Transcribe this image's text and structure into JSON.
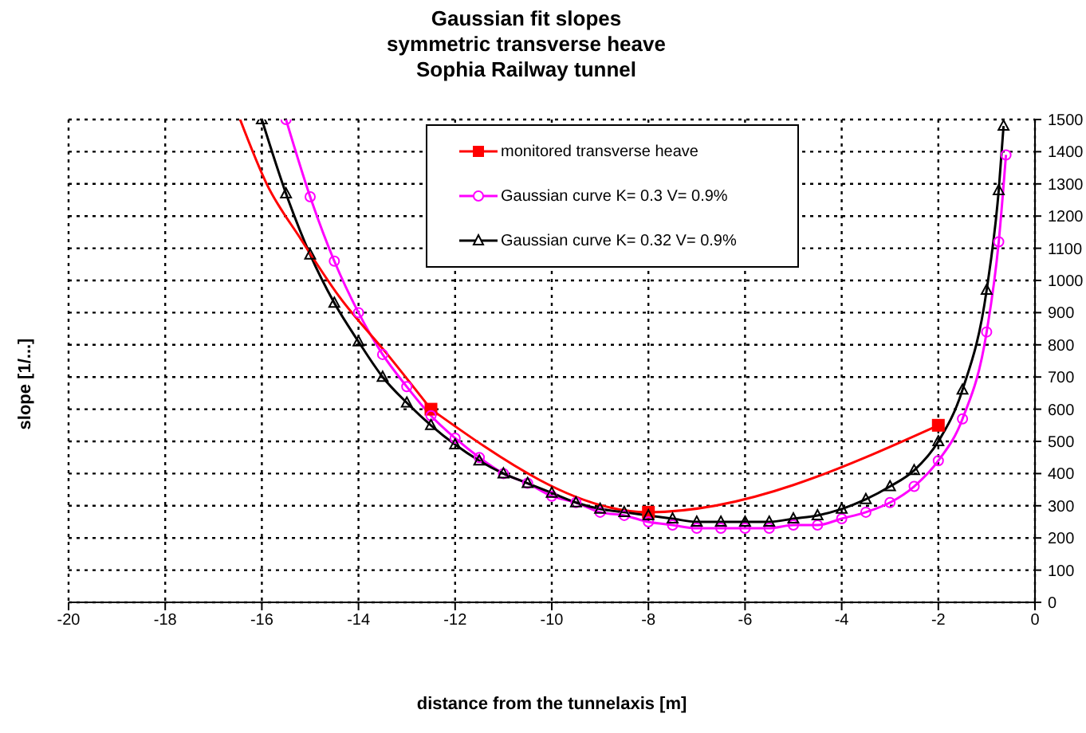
{
  "chart_data": {
    "type": "line",
    "title": "Gaussian fit slopes\nsymmetric transverse heave\nSophia Railway tunnel",
    "xlabel": "distance from the tunnelaxis [m]",
    "ylabel": "slope [1/...]",
    "xlim": [
      -20,
      0
    ],
    "xticks": [
      -20,
      -18,
      -16,
      -14,
      -12,
      -10,
      -8,
      -6,
      -4,
      -2,
      0
    ],
    "ylim": [
      0,
      1500
    ],
    "yticks": [
      0,
      100,
      200,
      300,
      400,
      500,
      600,
      700,
      800,
      900,
      1000,
      1100,
      1200,
      1300,
      1400,
      1500
    ],
    "grid": true,
    "legend": "top",
    "line_style": "solid",
    "series": [
      {
        "name": "monitored transverse heave",
        "color": "#ff0000",
        "marker": "square",
        "x": [
          -12.5,
          -8,
          -2
        ],
        "values": [
          600,
          280,
          550
        ]
      },
      {
        "name": "Gaussian curve K= 0.3 V= 0.9%",
        "color": "#ff00ff",
        "marker": "circle",
        "x": [
          -15.5,
          -15,
          -14.5,
          -14,
          -13.5,
          -13,
          -12.5,
          -12,
          -11.5,
          -11,
          -10.5,
          -10,
          -9.5,
          -9,
          -8.5,
          -8,
          -7.5,
          -7,
          -6.5,
          -6,
          -5.5,
          -5,
          -4.5,
          -4,
          -3.5,
          -3,
          -2.5,
          -2,
          -1.5,
          -1,
          -0.75,
          -0.6
        ],
        "values": [
          1500,
          1260,
          1060,
          900,
          770,
          670,
          580,
          510,
          450,
          400,
          370,
          330,
          310,
          280,
          270,
          250,
          240,
          230,
          230,
          230,
          230,
          240,
          240,
          260,
          280,
          310,
          360,
          440,
          570,
          840,
          1120,
          1390
        ]
      },
      {
        "name": "Gaussian curve K= 0.32 V= 0.9%",
        "color": "#000000",
        "marker": "triangle",
        "x": [
          -16,
          -15.5,
          -15,
          -14.5,
          -14,
          -13.5,
          -13,
          -12.5,
          -12,
          -11.5,
          -11,
          -10.5,
          -10,
          -9.5,
          -9,
          -8.5,
          -8,
          -7.5,
          -7,
          -6.5,
          -6,
          -5.5,
          -5,
          -4.5,
          -4,
          -3.5,
          -3,
          -2.5,
          -2,
          -1.5,
          -1,
          -0.75,
          -0.65
        ],
        "values": [
          1500,
          1270,
          1080,
          930,
          810,
          700,
          620,
          550,
          490,
          440,
          400,
          370,
          340,
          310,
          290,
          280,
          270,
          260,
          250,
          250,
          250,
          250,
          260,
          270,
          290,
          320,
          360,
          410,
          500,
          660,
          970,
          1280,
          1480
        ]
      },
      {
        "type": "line",
        "color": "#ff0000",
        "marker": "none",
        "x": [
          -16.45,
          -15.9,
          -15.2,
          -14.4,
          -13.4,
          -12.5
        ],
        "values": [
          1500,
          1300,
          1130,
          950,
          770,
          600
        ]
      }
    ]
  }
}
